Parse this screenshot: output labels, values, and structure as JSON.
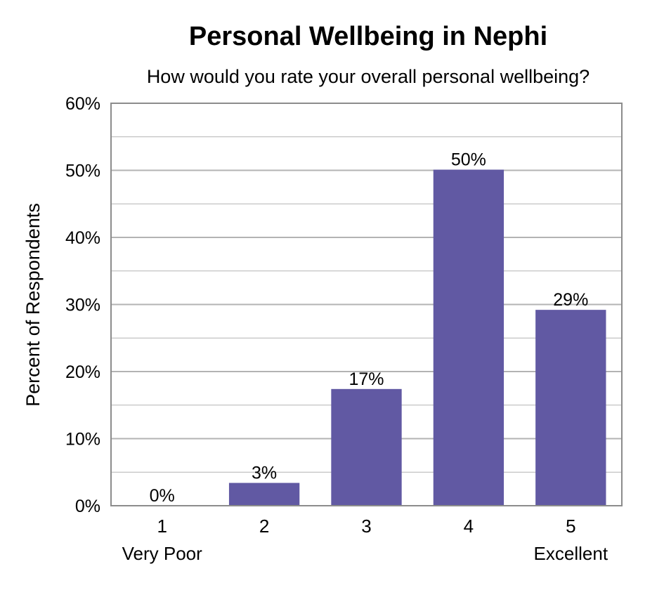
{
  "chart_data": {
    "type": "bar",
    "title": "Personal Wellbeing in Nephi",
    "subtitle": "How would you rate your overall personal wellbeing?",
    "ylabel": "Percent of Respondents",
    "xlabel": "",
    "categories": [
      "1",
      "2",
      "3",
      "4",
      "5"
    ],
    "category_sublabels": [
      "Very Poor",
      "",
      "",
      "",
      "Excellent"
    ],
    "values": [
      0,
      3.4,
      17.4,
      50.1,
      29.2
    ],
    "data_labels": [
      "0%",
      "3%",
      "17%",
      "50%",
      "29%"
    ],
    "ylim": [
      0,
      60
    ],
    "yticks": [
      0,
      10,
      20,
      30,
      40,
      50,
      60
    ],
    "ytick_labels": [
      "0%",
      "10%",
      "20%",
      "30%",
      "40%",
      "50%",
      "60%"
    ],
    "grid": true,
    "legend": "none",
    "colors": {
      "bar": "#6159a3",
      "gridline": "#b3b3b3",
      "axis": "#8c8c8c"
    }
  }
}
